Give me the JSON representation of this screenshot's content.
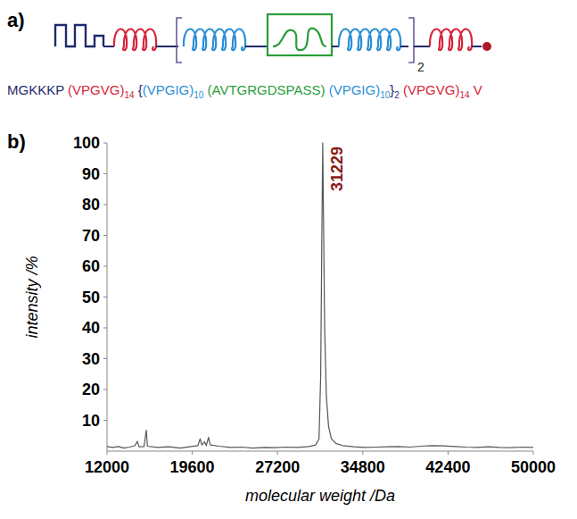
{
  "diagram": {
    "letter": "a)",
    "repeat_count": "2",
    "sequence": [
      {
        "text": "MGKKKP ",
        "color": "#1f2a6b",
        "sub": false
      },
      {
        "text": "(VPGVG)",
        "color": "#d6263a",
        "sub": false
      },
      {
        "text": "14",
        "color": "#d6263a",
        "sub": true
      },
      {
        "text": " {",
        "color": "#1f2a6b",
        "sub": false
      },
      {
        "text": "(VPGIG)",
        "color": "#2b8fd6",
        "sub": false
      },
      {
        "text": "10",
        "color": "#2b8fd6",
        "sub": true
      },
      {
        "text": " (AVTGRGDSPASS)",
        "color": "#2a9d3a",
        "sub": false
      },
      {
        "text": " (VPGIG)",
        "color": "#2b8fd6",
        "sub": false
      },
      {
        "text": "10",
        "color": "#2b8fd6",
        "sub": true
      },
      {
        "text": "}",
        "color": "#1f2a6b",
        "sub": false
      },
      {
        "text": "2",
        "color": "#1f2a6b",
        "sub": true
      },
      {
        "text": " (VPGVG)",
        "color": "#d6263a",
        "sub": false
      },
      {
        "text": "14",
        "color": "#d6263a",
        "sub": true
      },
      {
        "text": " V",
        "color": "#d6263a",
        "sub": false
      }
    ]
  },
  "chart_data": {
    "type": "line",
    "panel_letter": "b)",
    "x_label": "molecular weight /Da",
    "y_label": "intensity /%",
    "color": "#555555",
    "x": [
      12000,
      12500,
      13000,
      13500,
      14000,
      14500,
      14700,
      14850,
      15300,
      15500,
      15600,
      16500,
      17500,
      18500,
      19500,
      20100,
      20300,
      20450,
      20700,
      20850,
      21050,
      21200,
      22000,
      23000,
      24000,
      25000,
      26000,
      27000,
      28000,
      29000,
      30000,
      30600,
      30900,
      31050,
      31150,
      31229,
      31300,
      31400,
      31550,
      31750,
      32000,
      32400,
      33000,
      34000,
      35000,
      36000,
      37000,
      38000,
      39000,
      40000,
      41000,
      42000,
      43000,
      44000,
      45000,
      46000,
      47000,
      48000,
      49000,
      50000
    ],
    "values": [
      1.5,
      1.2,
      1.5,
      1.0,
      1.3,
      1.8,
      3.2,
      1.4,
      1.5,
      6.8,
      1.6,
      1.2,
      1.4,
      1.0,
      1.5,
      1.8,
      4.0,
      2.0,
      3.0,
      1.8,
      4.5,
      2.0,
      1.6,
      1.2,
      1.3,
      1.0,
      1.2,
      1.1,
      1.3,
      1.2,
      1.5,
      2.0,
      4,
      25,
      70,
      100,
      75,
      40,
      18,
      8,
      4,
      2.5,
      1.8,
      1.4,
      1.2,
      1.3,
      1.4,
      1.5,
      1.3,
      1.6,
      1.8,
      1.7,
      1.5,
      1.3,
      1.2,
      1.4,
      1.2,
      1.1,
      1.3,
      1.2
    ],
    "xlim": [
      12000,
      50000
    ],
    "xticks": [
      12000,
      19600,
      27200,
      34800,
      42400,
      50000
    ],
    "ylim": [
      0,
      100
    ],
    "yticks": [
      10,
      20,
      30,
      40,
      50,
      60,
      70,
      80,
      90,
      100
    ],
    "grid": false,
    "annotations": [
      {
        "x": 31229,
        "y": 100,
        "text": "31229",
        "color": "#8b1a1a"
      }
    ]
  }
}
